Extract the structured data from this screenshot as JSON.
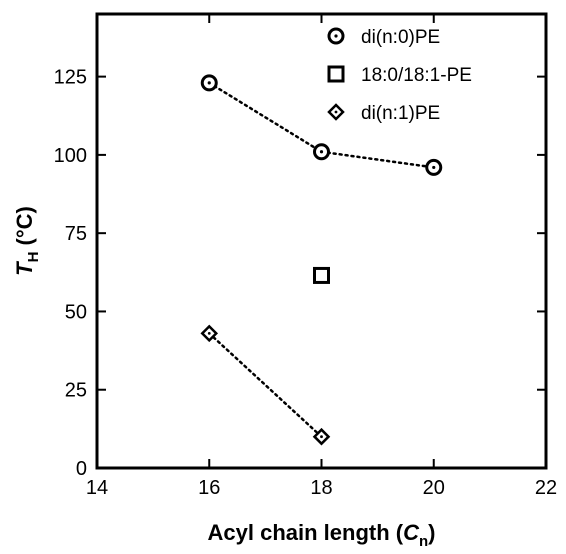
{
  "chart_data": {
    "type": "scatter",
    "xlabel": {
      "main": "Acyl chain length (",
      "italic": "C",
      "sub": "n",
      "close": ")"
    },
    "ylabel": {
      "italic": "T",
      "sub": "H",
      "rest": " (°C)"
    },
    "xlim": [
      14,
      22
    ],
    "ylim": [
      0,
      145
    ],
    "xticks": [
      14,
      16,
      18,
      20,
      22
    ],
    "yticks": [
      0,
      25,
      50,
      75,
      100,
      125
    ],
    "grid": false,
    "legend_position": "top-right",
    "series": [
      {
        "name": "di(n:0)PE",
        "marker": "circle",
        "connected": true,
        "points": [
          {
            "x": 16,
            "y": 123
          },
          {
            "x": 18,
            "y": 101
          },
          {
            "x": 20,
            "y": 96
          }
        ]
      },
      {
        "name": "18:0/18:1-PE",
        "marker": "square",
        "connected": false,
        "points": [
          {
            "x": 18,
            "y": 61.5
          }
        ]
      },
      {
        "name": "di(n:1)PE",
        "marker": "diamond",
        "connected": true,
        "points": [
          {
            "x": 16,
            "y": 43
          },
          {
            "x": 18,
            "y": 10
          }
        ]
      }
    ]
  }
}
